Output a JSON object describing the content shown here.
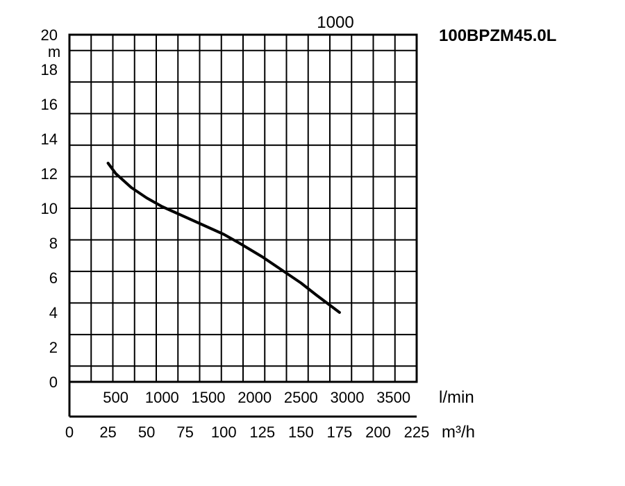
{
  "chart_data": {
    "type": "line",
    "title": "100BPZM45.0L",
    "top_label": "1000",
    "ylabel": "m",
    "x_unit_lpm": "l/min",
    "x_unit_m3h": "m³/h",
    "ylim": [
      0,
      20
    ],
    "xlim": [
      0,
      225
    ],
    "y_ticks": [
      "0",
      "2",
      "4",
      "6",
      "8",
      "10",
      "12",
      "14",
      "16",
      "18",
      "20"
    ],
    "x_ticks_m3h": [
      "0",
      "25",
      "50",
      "75",
      "100",
      "125",
      "150",
      "175",
      "200",
      "225"
    ],
    "x_ticks_lpm": [
      "500",
      "1000",
      "1500",
      "2000",
      "2500",
      "3000",
      "3500"
    ],
    "grid": true,
    "series": [
      {
        "x": [
          25,
          30,
          40,
          50,
          60,
          75,
          90,
          100,
          110,
          125,
          140,
          150,
          160,
          175
        ],
        "y": [
          12.6,
          12.0,
          11.2,
          10.6,
          10.1,
          9.5,
          8.9,
          8.5,
          8.0,
          7.2,
          6.3,
          5.7,
          5.0,
          4.0
        ]
      }
    ]
  }
}
